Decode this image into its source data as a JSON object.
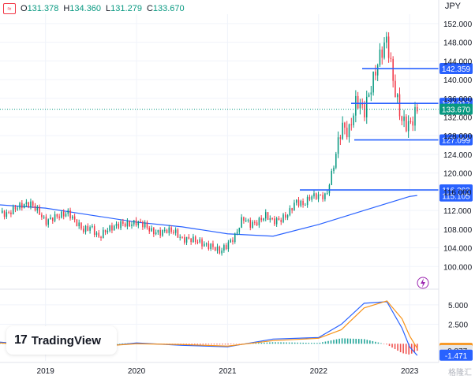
{
  "header": {
    "open_label": "O",
    "open": "131.378",
    "high_label": "H",
    "high": "134.360",
    "low_label": "L",
    "low": "131.279",
    "close_label": "C",
    "close": "133.670",
    "logo_mark": "≈"
  },
  "unit": "JPY",
  "branding": {
    "name": "TradingView",
    "mark": "17"
  },
  "watermark": "格隆汇",
  "chart_data": {
    "type": "candlestick",
    "x_ticks": [
      "2019",
      "2020",
      "2021",
      "2022",
      "2023"
    ],
    "y_ticks": [
      "152.000",
      "148.000",
      "144.000",
      "140.000",
      "136.000",
      "132.000",
      "128.000",
      "124.000",
      "120.000",
      "116.000",
      "112.000",
      "108.000",
      "104.000",
      "100.000"
    ],
    "ylim": [
      96,
      154
    ],
    "last_price": 133.67,
    "price_series": [
      [
        "2018-07",
        111.5
      ],
      [
        "2018-08",
        111.2
      ],
      [
        "2018-09",
        112.5
      ],
      [
        "2018-10",
        113.2
      ],
      [
        "2018-11",
        113.5
      ],
      [
        "2018-12",
        112.0
      ],
      [
        "2019-01",
        109.5
      ],
      [
        "2019-02",
        110.5
      ],
      [
        "2019-03",
        111.0
      ],
      [
        "2019-04",
        111.5
      ],
      [
        "2019-05",
        109.5
      ],
      [
        "2019-06",
        107.8
      ],
      [
        "2019-07",
        108.5
      ],
      [
        "2019-08",
        106.2
      ],
      [
        "2019-09",
        107.8
      ],
      [
        "2019-10",
        108.5
      ],
      [
        "2019-11",
        109.2
      ],
      [
        "2019-12",
        109.0
      ],
      [
        "2020-01",
        109.5
      ],
      [
        "2020-02",
        109.0
      ],
      [
        "2020-03",
        107.5
      ],
      [
        "2020-04",
        107.2
      ],
      [
        "2020-05",
        107.8
      ],
      [
        "2020-06",
        107.5
      ],
      [
        "2020-07",
        105.8
      ],
      [
        "2020-08",
        105.9
      ],
      [
        "2020-09",
        105.5
      ],
      [
        "2020-10",
        104.6
      ],
      [
        "2020-11",
        104.3
      ],
      [
        "2020-12",
        103.2
      ],
      [
        "2021-01",
        104.7
      ],
      [
        "2021-02",
        106.5
      ],
      [
        "2021-03",
        110.5
      ],
      [
        "2021-04",
        109.0
      ],
      [
        "2021-05",
        109.5
      ],
      [
        "2021-06",
        111.0
      ],
      [
        "2021-07",
        109.7
      ],
      [
        "2021-08",
        110.0
      ],
      [
        "2021-09",
        111.3
      ],
      [
        "2021-10",
        114.0
      ],
      [
        "2021-11",
        113.2
      ],
      [
        "2021-12",
        115.1
      ],
      [
        "2022-01",
        115.1
      ],
      [
        "2022-02",
        115.0
      ],
      [
        "2022-03",
        121.7
      ],
      [
        "2022-04",
        130.0
      ],
      [
        "2022-05",
        128.7
      ],
      [
        "2022-06",
        135.7
      ],
      [
        "2022-07",
        133.2
      ],
      [
        "2022-08",
        138.9
      ],
      [
        "2022-09",
        144.7
      ],
      [
        "2022-10",
        148.7
      ],
      [
        "2022-11",
        138.0
      ],
      [
        "2022-12",
        131.1
      ],
      [
        "2023-01",
        130.1
      ],
      [
        "2023-02",
        133.7
      ]
    ],
    "moving_average": [
      [
        "2018-07",
        113.2
      ],
      [
        "2019-01",
        112.5
      ],
      [
        "2019-07",
        111.0
      ],
      [
        "2020-01",
        109.5
      ],
      [
        "2020-07",
        108.5
      ],
      [
        "2021-01",
        107.0
      ],
      [
        "2021-07",
        106.5
      ],
      [
        "2022-01",
        109.0
      ],
      [
        "2022-07",
        112.0
      ],
      [
        "2023-01",
        115.0
      ],
      [
        "2023-02",
        115.2
      ]
    ],
    "horizontal_levels": [
      {
        "label": "142.359",
        "value": 142.359
      },
      {
        "label": "134.917",
        "value": 134.917
      },
      {
        "label": "127.099",
        "value": 127.099
      },
      {
        "label": "116.393",
        "value": 116.393
      },
      {
        "label": "115.105",
        "value": 115.105
      }
    ],
    "indicator": {
      "y_ticks": [
        "5.000",
        "2.500"
      ],
      "ylim": [
        -2.2,
        6.5
      ],
      "labels": [
        {
          "label": "-0.595",
          "value": -0.595,
          "color": "#f7931a"
        },
        {
          "label": "-0.877",
          "value": -0.877,
          "color": "#e6e6e6"
        },
        {
          "label": "-1.471",
          "value": -1.471,
          "color": "#2962ff"
        }
      ],
      "macd": [
        [
          "2018-07",
          0.2
        ],
        [
          "2019-01",
          -0.3
        ],
        [
          "2019-07",
          -0.5
        ],
        [
          "2020-01",
          0.1
        ],
        [
          "2020-07",
          -0.2
        ],
        [
          "2021-01",
          -0.4
        ],
        [
          "2021-07",
          0.6
        ],
        [
          "2022-01",
          0.8
        ],
        [
          "2022-04",
          2.5
        ],
        [
          "2022-07",
          5.2
        ],
        [
          "2022-10",
          5.4
        ],
        [
          "2022-12",
          2.0
        ],
        [
          "2023-01",
          -0.4
        ],
        [
          "2023-02",
          -1.5
        ]
      ],
      "signal": [
        [
          "2018-07",
          0.1
        ],
        [
          "2019-01",
          -0.2
        ],
        [
          "2019-07",
          -0.4
        ],
        [
          "2020-01",
          0.0
        ],
        [
          "2020-07",
          -0.1
        ],
        [
          "2021-01",
          -0.3
        ],
        [
          "2021-07",
          0.4
        ],
        [
          "2022-01",
          0.7
        ],
        [
          "2022-04",
          1.8
        ],
        [
          "2022-07",
          4.6
        ],
        [
          "2022-10",
          5.5
        ],
        [
          "2022-12",
          3.2
        ],
        [
          "2023-01",
          1.0
        ],
        [
          "2023-02",
          -0.6
        ]
      ]
    }
  },
  "colors": {
    "up": "#089981",
    "down": "#f23645",
    "level_line": "#2962ff",
    "ma": "#2962ff",
    "macd_line": "#2962ff",
    "signal_line": "#f7931a",
    "grid": "#f0f3fa",
    "axis_text": "#131722"
  },
  "icons": {
    "bolt": "bolt-icon"
  }
}
